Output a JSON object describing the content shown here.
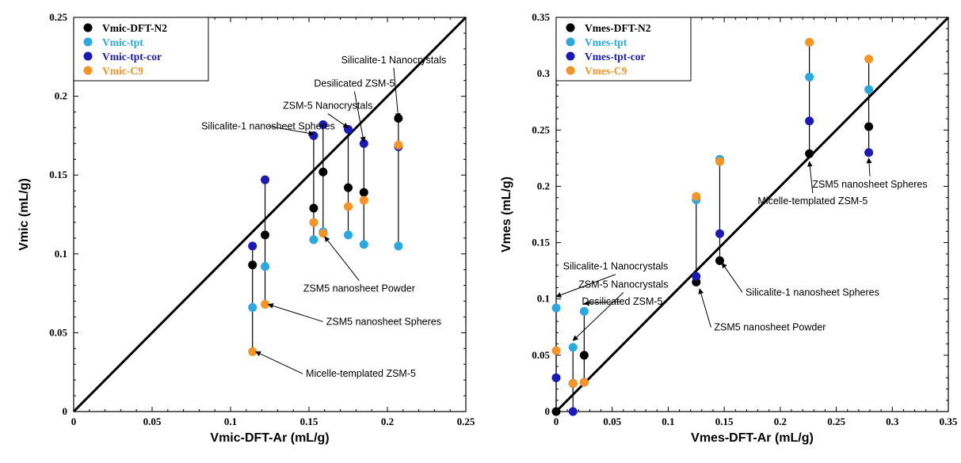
{
  "chart_data": [
    {
      "type": "scatter",
      "xlabel": "Vmic-DFT-Ar (mL/g)",
      "ylabel": "Vmic (mL/g)",
      "xlim": [
        0,
        0.25
      ],
      "ylim": [
        0,
        0.25
      ],
      "xticks": [
        "0",
        "0.05",
        "0.1",
        "0.15",
        "0.2",
        "0.25"
      ],
      "yticks": [
        "0",
        "0.05",
        "0.1",
        "0.15",
        "0.2",
        "0.25"
      ],
      "diagonal": true,
      "legend_position": "top-left",
      "x": [
        0.114,
        0.122,
        0.153,
        0.159,
        0.175,
        0.185,
        0.207
      ],
      "series": [
        {
          "name": "Vmic-DFT-N2",
          "color": "#000000",
          "values": [
            0.093,
            0.112,
            0.129,
            0.152,
            0.142,
            0.139,
            0.186
          ]
        },
        {
          "name": "Vmic-tpt",
          "color": "#29a9e0",
          "values": [
            0.066,
            0.092,
            0.109,
            0.114,
            0.112,
            0.106,
            0.105
          ]
        },
        {
          "name": "Vmic-tpt-cor",
          "color": "#1a1ab8",
          "values": [
            0.105,
            0.147,
            0.175,
            0.182,
            0.179,
            0.17,
            0.168
          ]
        },
        {
          "name": "Vmic-C9",
          "color": "#f39424",
          "values": [
            0.038,
            0.068,
            0.12,
            0.113,
            0.13,
            0.134,
            0.169
          ]
        }
      ],
      "annotations": [
        {
          "text": "Silicalite-1 Nanocrystals",
          "target": [
            0.207,
            0.186
          ],
          "label_at": [
            0.204,
            0.221
          ],
          "anchor": "middle"
        },
        {
          "text": "Desilicated ZSM-5",
          "target": [
            0.185,
            0.171
          ],
          "label_at": [
            0.179,
            0.206
          ],
          "anchor": "middle"
        },
        {
          "text": "ZSM-5 Nanocrystals",
          "target": [
            0.175,
            0.18
          ],
          "label_at": [
            0.162,
            0.192
          ],
          "anchor": "middle"
        },
        {
          "text": "Silicalite-1 nanosheet Spheres",
          "target": [
            0.153,
            0.176
          ],
          "label_at": [
            0.124,
            0.179
          ],
          "anchor": "middle"
        },
        {
          "text": "ZSM5 nanosheet Powder",
          "target": [
            0.16,
            0.111
          ],
          "label_at": [
            0.182,
            0.076
          ],
          "anchor": "middle"
        },
        {
          "text": "ZSM5 nanosheet Spheres",
          "target": [
            0.124,
            0.068
          ],
          "label_at": [
            0.161,
            0.055
          ],
          "anchor": "start"
        },
        {
          "text": "Micelle-templated ZSM-5",
          "target": [
            0.116,
            0.038
          ],
          "label_at": [
            0.148,
            0.022
          ],
          "anchor": "start"
        }
      ]
    },
    {
      "type": "scatter",
      "xlabel": "Vmes-DFT-Ar (mL/g)",
      "ylabel": "Vmes (mL/g)",
      "xlim": [
        0,
        0.35
      ],
      "ylim": [
        0,
        0.35
      ],
      "xticks": [
        "0",
        "0.05",
        "0.1",
        "0.15",
        "0.2",
        "0.25",
        "0.3",
        "0.35"
      ],
      "yticks": [
        "0",
        "0.05",
        "0.1",
        "0.15",
        "0.2",
        "0.25",
        "0.3",
        "0.35"
      ],
      "diagonal": true,
      "legend_position": "top-left",
      "x": [
        0.0,
        0.015,
        0.025,
        0.125,
        0.146,
        0.226,
        0.279
      ],
      "series": [
        {
          "name": "Vmes-DFT-N2",
          "color": "#000000",
          "values": [
            0.0,
            0.025,
            0.05,
            0.115,
            0.134,
            0.229,
            0.253
          ]
        },
        {
          "name": "Vmes-tpt",
          "color": "#29a9e0",
          "values": [
            0.092,
            0.057,
            0.089,
            0.188,
            0.224,
            0.297,
            0.286
          ]
        },
        {
          "name": "Vmes-tpt-cor",
          "color": "#1a1ab8",
          "values": [
            0.03,
            0.0,
            0.026,
            0.12,
            0.158,
            0.258,
            0.23
          ]
        },
        {
          "name": "Vmes-C9",
          "color": "#f39424",
          "values": [
            0.054,
            0.025,
            0.026,
            0.191,
            0.222,
            0.328,
            0.313
          ]
        }
      ],
      "annotations": [
        {
          "text": "Silicalite-1 Nanocrystals",
          "target": [
            0.0,
            0.102
          ],
          "label_at": [
            0.053,
            0.126
          ],
          "anchor": "middle"
        },
        {
          "text": "ZSM-5 Nanocrystals",
          "target": [
            0.015,
            0.063
          ],
          "label_at": [
            0.06,
            0.11
          ],
          "anchor": "middle"
        },
        {
          "text": "Desilicated ZSM-5",
          "target": [
            0.025,
            0.096
          ],
          "label_at": [
            0.059,
            0.095
          ],
          "anchor": "middle"
        },
        {
          "text": "Silicalite-1 nanosheet Spheres",
          "target": [
            0.148,
            0.132
          ],
          "label_at": [
            0.169,
            0.103
          ],
          "anchor": "start"
        },
        {
          "text": "ZSM5 nanosheet Powder",
          "target": [
            0.128,
            0.109
          ],
          "label_at": [
            0.141,
            0.072
          ],
          "anchor": "start"
        },
        {
          "text": "Micelle-templated ZSM-5",
          "target": [
            0.226,
            0.222
          ],
          "label_at": [
            0.229,
            0.184
          ],
          "anchor": "middle"
        },
        {
          "text": "ZSM5 nanosheet Spheres",
          "target": [
            0.279,
            0.225
          ],
          "label_at": [
            0.28,
            0.199
          ],
          "anchor": "middle"
        }
      ]
    }
  ]
}
